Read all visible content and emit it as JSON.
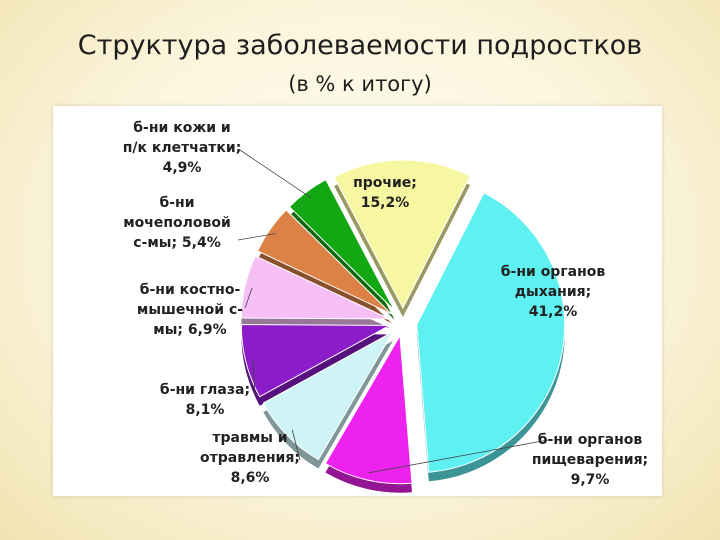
{
  "title": "Структура заболеваемости подростков",
  "subtitle": "(в % к итогу)",
  "chart_data": {
    "type": "pie",
    "title": "Структура заболеваемости подростков",
    "subtitle": "(в % к итогу)",
    "exploded": true,
    "three_d": true,
    "slices": [
      {
        "label": "б-ни органов дыхания",
        "value": 41.2,
        "color": "#5ff0f2",
        "text": "б-ни органов\nдыхания;\n41,2%"
      },
      {
        "label": "б-ни органов пищеварения",
        "value": 9.7,
        "color": "#ee22ee",
        "text": "б-ни органов\nпищеварения;\n9,7%"
      },
      {
        "label": "травмы и отравления",
        "value": 8.6,
        "color": "#cff4f7",
        "text": "травмы и\nотравления;\n8,6%"
      },
      {
        "label": "б-ни глаза",
        "value": 8.1,
        "color": "#8a1cc9",
        "text": "б-ни глаза;\n8,1%"
      },
      {
        "label": "б-ни костно-мышечной с-мы",
        "value": 6.9,
        "color": "#f6c0f6",
        "text": "б-ни костно-\nмышечной с-\nмы; 6,9%"
      },
      {
        "label": "б-ни мочеполовой с-мы",
        "value": 5.4,
        "color": "#dd8246",
        "text": "б-ни\nмочеполовой\nс-мы; 5,4%"
      },
      {
        "label": "б-ни кожи и п/к клетчатки",
        "value": 4.9,
        "color": "#13a813",
        "text": "б-ни кожи и\nп/к клетчатки;\n4,9%"
      },
      {
        "label": "прочие",
        "value": 15.2,
        "color": "#f7f7a2",
        "text": "прочие;\n15,2%"
      }
    ]
  }
}
